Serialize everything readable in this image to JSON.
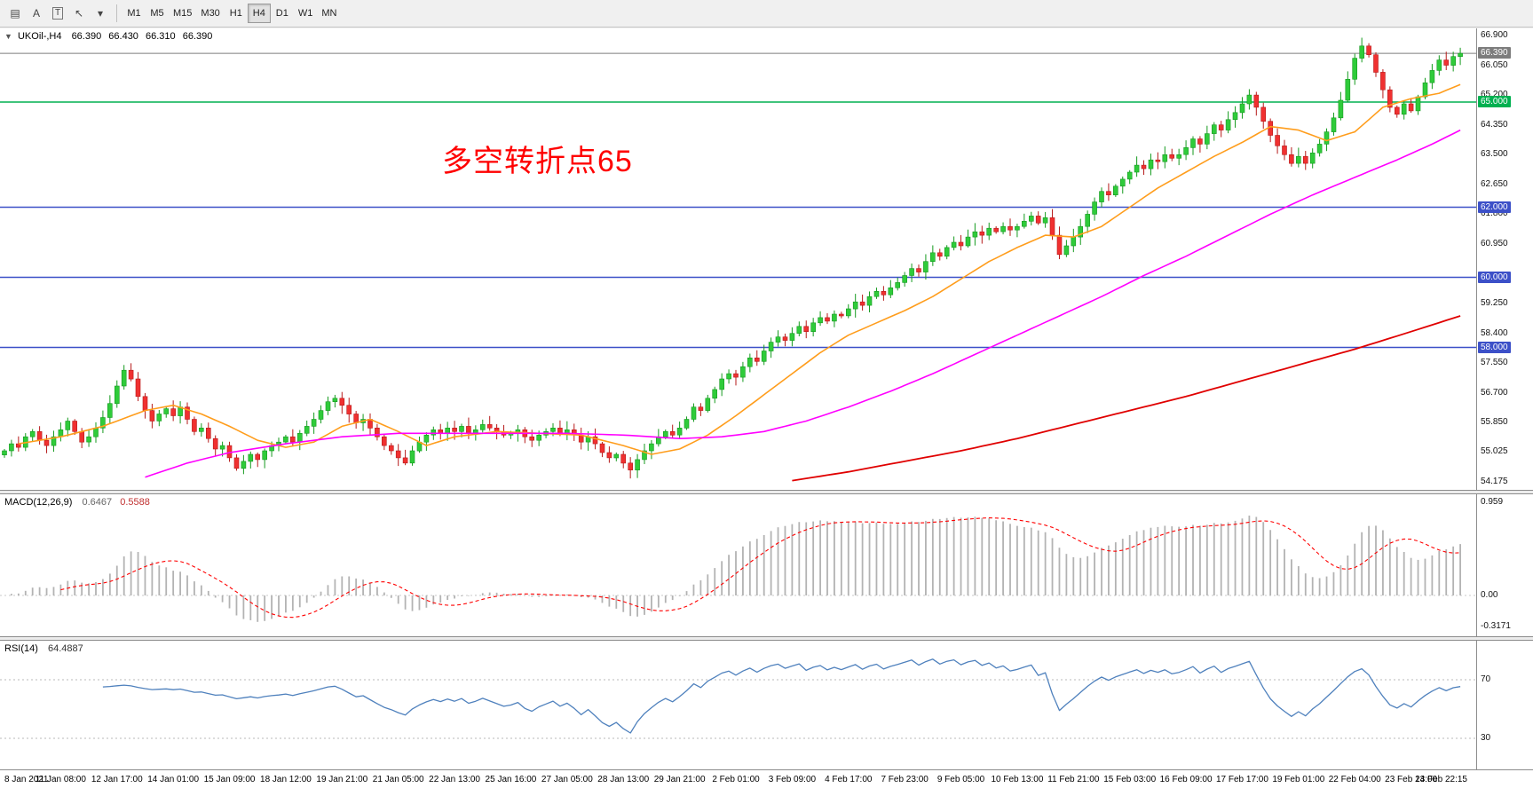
{
  "toolbar": {
    "icons": [
      {
        "name": "charts-grid-icon",
        "glyph": "▤"
      },
      {
        "name": "annotation-text-icon",
        "glyph": "A"
      },
      {
        "name": "textbox-tool-icon",
        "glyph": "T",
        "boxed": true
      },
      {
        "name": "cursor-tool-icon",
        "glyph": "↖"
      },
      {
        "name": "tool-dropdown-icon",
        "glyph": "▾"
      }
    ],
    "timeframes": [
      {
        "label": "M1"
      },
      {
        "label": "M5"
      },
      {
        "label": "M15"
      },
      {
        "label": "M30"
      },
      {
        "label": "H1"
      },
      {
        "label": "H4",
        "active": true
      },
      {
        "label": "D1"
      },
      {
        "label": "W1"
      },
      {
        "label": "MN"
      }
    ]
  },
  "chart": {
    "header": {
      "caret": "▼",
      "symbol": "UKOil-,H4",
      "ohlc": [
        "66.390",
        "66.430",
        "66.310",
        "66.390"
      ]
    },
    "annotation": {
      "text": "多空转折点65",
      "color": "#ff0000"
    }
  },
  "chart_data": {
    "type": "candlestick",
    "symbol": "UKOil-",
    "timeframe": "H4",
    "colors": {
      "up": "#2fcb3a",
      "up_stroke": "#149a1e",
      "down": "#f03030",
      "down_stroke": "#b61a1a",
      "ma_fast": "#ff9d1c",
      "ma_mid": "#ff00ff",
      "ma_slow": "#e00000",
      "hline_blue": "#3c50c8",
      "hline_green": "#00b050",
      "bid": "#7d7d7d",
      "macd_hist": "#b3b3b3",
      "macd_signal": "#ff0000",
      "rsi_line": "#4f81bd",
      "rsi_level": "#b8b8b8",
      "grid_dotted": "#c8c8c8"
    },
    "price_ticks": [
      "66.900",
      "66.050",
      "65.200",
      "64.350",
      "63.500",
      "62.650",
      "61.800",
      "60.950",
      "59.250",
      "58.400",
      "57.550",
      "56.700",
      "55.850",
      "55.025",
      "54.175"
    ],
    "hlines": [
      {
        "value": 65.0,
        "label": "65.000",
        "color": "#00b050"
      },
      {
        "value": 62.0,
        "label": "62.000",
        "color": "#3c50c8"
      },
      {
        "value": 60.0,
        "label": "60.000",
        "color": "#3c50c8"
      },
      {
        "value": 58.0,
        "label": "58.000",
        "color": "#3c50c8"
      }
    ],
    "bid": {
      "value": 66.39,
      "label": "66.390",
      "color": "#7d7d7d"
    },
    "time_labels": [
      "8 Jan 2021",
      "11 Jan 08:00",
      "12 Jan 17:00",
      "14 Jan 01:00",
      "15 Jan 09:00",
      "18 Jan 12:00",
      "19 Jan 21:00",
      "21 Jan 05:00",
      "22 Jan 13:00",
      "25 Jan 16:00",
      "27 Jan 05:00",
      "28 Jan 13:00",
      "29 Jan 21:00",
      "2 Feb 01:00",
      "3 Feb 09:00",
      "4 Feb 17:00",
      "7 Feb 23:00",
      "9 Feb 05:00",
      "10 Feb 13:00",
      "11 Feb 21:00",
      "15 Feb 03:00",
      "16 Feb 09:00",
      "17 Feb 17:00",
      "19 Feb 01:00",
      "22 Feb 04:00",
      "23 Feb 13:00",
      "24 Feb 22:15"
    ],
    "bars_per_label": 8,
    "closes": [
      55.05,
      55.25,
      55.15,
      55.45,
      55.6,
      55.35,
      55.2,
      55.45,
      55.65,
      55.9,
      55.6,
      55.3,
      55.45,
      55.7,
      56.0,
      56.4,
      56.9,
      57.35,
      57.1,
      56.6,
      56.2,
      55.9,
      56.1,
      56.25,
      56.05,
      56.3,
      55.95,
      55.6,
      55.7,
      55.4,
      55.1,
      55.2,
      54.85,
      54.55,
      54.75,
      54.95,
      54.8,
      55.05,
      55.2,
      55.3,
      55.45,
      55.3,
      55.55,
      55.75,
      55.95,
      56.2,
      56.45,
      56.55,
      56.35,
      56.1,
      55.85,
      55.95,
      55.7,
      55.45,
      55.2,
      55.05,
      54.85,
      54.7,
      55.05,
      55.3,
      55.5,
      55.65,
      55.55,
      55.7,
      55.6,
      55.75,
      55.55,
      55.65,
      55.8,
      55.7,
      55.6,
      55.5,
      55.55,
      55.65,
      55.45,
      55.35,
      55.5,
      55.6,
      55.7,
      55.55,
      55.65,
      55.5,
      55.3,
      55.45,
      55.25,
      55.0,
      54.85,
      54.95,
      54.7,
      54.5,
      54.8,
      55.05,
      55.25,
      55.45,
      55.6,
      55.5,
      55.7,
      55.95,
      56.3,
      56.2,
      56.55,
      56.8,
      57.1,
      57.25,
      57.15,
      57.45,
      57.7,
      57.6,
      57.9,
      58.15,
      58.3,
      58.2,
      58.4,
      58.6,
      58.45,
      58.7,
      58.85,
      58.75,
      58.95,
      58.9,
      59.1,
      59.3,
      59.2,
      59.45,
      59.6,
      59.5,
      59.7,
      59.85,
      60.05,
      60.25,
      60.15,
      60.45,
      60.7,
      60.6,
      60.85,
      61.0,
      60.9,
      61.15,
      61.3,
      61.2,
      61.4,
      61.3,
      61.45,
      61.35,
      61.45,
      61.6,
      61.75,
      61.55,
      61.7,
      61.2,
      60.65,
      60.9,
      61.15,
      61.45,
      61.8,
      62.15,
      62.45,
      62.35,
      62.6,
      62.8,
      63.0,
      63.2,
      63.1,
      63.35,
      63.3,
      63.5,
      63.4,
      63.5,
      63.7,
      63.95,
      63.8,
      64.1,
      64.35,
      64.2,
      64.5,
      64.7,
      64.95,
      65.2,
      64.85,
      64.45,
      64.05,
      63.75,
      63.5,
      63.25,
      63.45,
      63.25,
      63.55,
      63.8,
      64.15,
      64.55,
      65.05,
      65.65,
      66.25,
      66.6,
      66.35,
      65.85,
      65.35,
      64.85,
      64.65,
      64.95,
      64.75,
      65.15,
      65.55,
      65.9,
      66.2,
      66.05,
      66.3,
      66.39
    ],
    "ma_lines": [
      {
        "name": "fast-ma-orange",
        "color": "#ff9d1c",
        "width": 1.6,
        "anchors": [
          [
            2,
            55.25
          ],
          [
            8,
            55.45
          ],
          [
            14,
            55.75
          ],
          [
            20,
            56.2
          ],
          [
            24,
            56.35
          ],
          [
            28,
            56.1
          ],
          [
            32,
            55.75
          ],
          [
            36,
            55.35
          ],
          [
            40,
            55.15
          ],
          [
            44,
            55.3
          ],
          [
            48,
            55.75
          ],
          [
            52,
            55.95
          ],
          [
            56,
            55.6
          ],
          [
            60,
            55.2
          ],
          [
            64,
            55.45
          ],
          [
            70,
            55.6
          ],
          [
            76,
            55.55
          ],
          [
            82,
            55.5
          ],
          [
            88,
            55.2
          ],
          [
            92,
            54.95
          ],
          [
            96,
            55.1
          ],
          [
            100,
            55.5
          ],
          [
            104,
            56.05
          ],
          [
            108,
            56.65
          ],
          [
            112,
            57.25
          ],
          [
            116,
            57.85
          ],
          [
            120,
            58.35
          ],
          [
            124,
            58.7
          ],
          [
            128,
            59.05
          ],
          [
            132,
            59.45
          ],
          [
            136,
            59.95
          ],
          [
            140,
            60.45
          ],
          [
            144,
            60.85
          ],
          [
            148,
            61.2
          ],
          [
            152,
            61.15
          ],
          [
            156,
            61.45
          ],
          [
            160,
            62.0
          ],
          [
            164,
            62.55
          ],
          [
            168,
            63.0
          ],
          [
            172,
            63.45
          ],
          [
            176,
            63.85
          ],
          [
            180,
            64.3
          ],
          [
            184,
            64.2
          ],
          [
            188,
            63.9
          ],
          [
            192,
            64.15
          ],
          [
            196,
            64.85
          ],
          [
            200,
            65.1
          ],
          [
            204,
            65.25
          ],
          [
            207,
            65.5
          ]
        ]
      },
      {
        "name": "mid-ma-magenta",
        "color": "#ff00ff",
        "width": 1.6,
        "anchors": [
          [
            20,
            54.3
          ],
          [
            26,
            54.7
          ],
          [
            32,
            55.0
          ],
          [
            40,
            55.25
          ],
          [
            48,
            55.45
          ],
          [
            56,
            55.55
          ],
          [
            64,
            55.55
          ],
          [
            72,
            55.55
          ],
          [
            80,
            55.55
          ],
          [
            88,
            55.5
          ],
          [
            96,
            55.4
          ],
          [
            102,
            55.45
          ],
          [
            108,
            55.6
          ],
          [
            114,
            55.9
          ],
          [
            120,
            56.3
          ],
          [
            126,
            56.75
          ],
          [
            132,
            57.25
          ],
          [
            138,
            57.8
          ],
          [
            144,
            58.35
          ],
          [
            150,
            58.9
          ],
          [
            156,
            59.45
          ],
          [
            162,
            60.05
          ],
          [
            168,
            60.6
          ],
          [
            174,
            61.2
          ],
          [
            180,
            61.8
          ],
          [
            186,
            62.35
          ],
          [
            192,
            62.85
          ],
          [
            198,
            63.35
          ],
          [
            203,
            63.8
          ],
          [
            207,
            64.2
          ]
        ]
      },
      {
        "name": "slow-ma-red",
        "color": "#e00000",
        "width": 1.8,
        "anchors": [
          [
            112,
            54.2
          ],
          [
            120,
            54.45
          ],
          [
            128,
            54.75
          ],
          [
            136,
            55.05
          ],
          [
            144,
            55.4
          ],
          [
            152,
            55.8
          ],
          [
            160,
            56.2
          ],
          [
            168,
            56.6
          ],
          [
            176,
            57.05
          ],
          [
            184,
            57.5
          ],
          [
            192,
            57.95
          ],
          [
            200,
            58.45
          ],
          [
            207,
            58.9
          ]
        ]
      }
    ],
    "macd": {
      "title": "MACD(12,26,9)",
      "display": [
        "0.6467",
        "0.5588"
      ],
      "fast": 12,
      "slow": 26,
      "signal": 9,
      "axis": [
        "0.959",
        "0.00",
        "-0.3171"
      ],
      "axis_values": [
        0.959,
        0.0,
        -0.3171
      ]
    },
    "rsi": {
      "title": "RSI(14)",
      "display": "64.4887",
      "period": 14,
      "levels": [
        70,
        30
      ],
      "axis": [
        "70",
        "30"
      ]
    }
  }
}
